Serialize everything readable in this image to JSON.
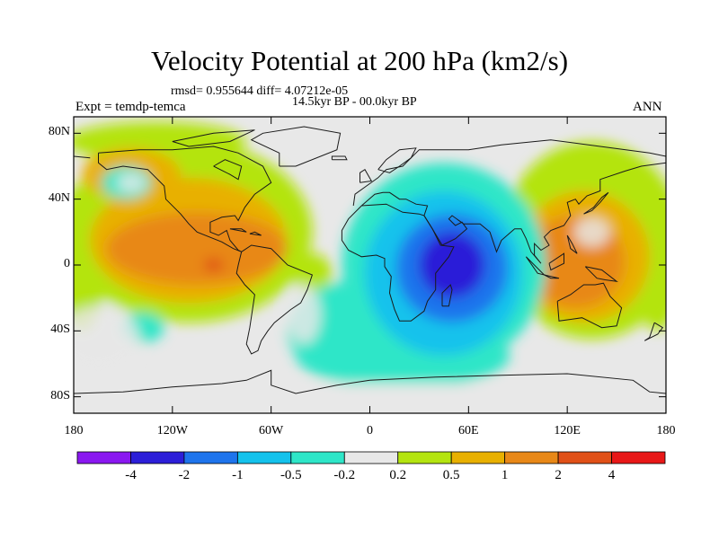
{
  "header": {
    "title": "Velocity Potential at 200 hPa (km2/s)",
    "stats": "rmsd= 0.955644 diff= 4.07212e-05",
    "left_label": "Expt = temdp-temca",
    "center_label": "14.5kyr BP - 00.0kyr BP",
    "right_label": "ANN"
  },
  "chart_data": {
    "type": "filled-contour-map",
    "title": "Velocity Potential at 200 hPa (km2/s)",
    "variable": "velocity potential difference",
    "units": "km2/s",
    "level_hpa": 200,
    "season": "ANN",
    "experiment": "temdp-temca",
    "period": "14.5kyr BP - 00.0kyr BP",
    "xaxis": {
      "ticks": [
        -180,
        -120,
        -60,
        0,
        60,
        120,
        180
      ],
      "tick_labels": [
        "180",
        "120W",
        "60W",
        "0",
        "60E",
        "120E",
        "180"
      ],
      "range": [
        -180,
        180
      ]
    },
    "yaxis": {
      "ticks": [
        80,
        40,
        0,
        -40,
        -80
      ],
      "tick_labels": [
        "80N",
        "40N",
        "0",
        "40S",
        "80S"
      ],
      "range": [
        -90,
        90
      ]
    },
    "contour_levels": [
      -4,
      -2,
      -1,
      -0.5,
      -0.2,
      0.2,
      0.5,
      1,
      2,
      4
    ],
    "colorbar_labels": [
      "-4",
      "-2",
      "-1",
      "-0.5",
      "-0.2",
      "0.2",
      "0.5",
      "1",
      "2",
      "4"
    ],
    "colors": [
      "#8a18f0",
      "#2c1ed8",
      "#1e74ec",
      "#14c2ec",
      "#2ee6c8",
      "#e8e8e8",
      "#b4e410",
      "#e8b000",
      "#e88818",
      "#e05018",
      "#e81818"
    ],
    "features": [
      {
        "name": "africa-indian-ocean-minimum",
        "lon": 50,
        "lat": 0,
        "value": -3.5
      },
      {
        "name": "eastern-pacific-maximum",
        "lon": -95,
        "lat": 0,
        "value": 2.5
      },
      {
        "name": "maritime-continent-maximum",
        "lon": 120,
        "lat": -5,
        "value": 2.0
      },
      {
        "name": "north-pacific-minimum",
        "lon": -150,
        "lat": 50,
        "value": -0.4
      },
      {
        "name": "southeast-pacific-minimum",
        "lon": -135,
        "lat": -40,
        "value": -0.3
      },
      {
        "name": "east-asia-weak-minimum",
        "lon": 135,
        "lat": 20,
        "value": 0.0
      }
    ]
  }
}
